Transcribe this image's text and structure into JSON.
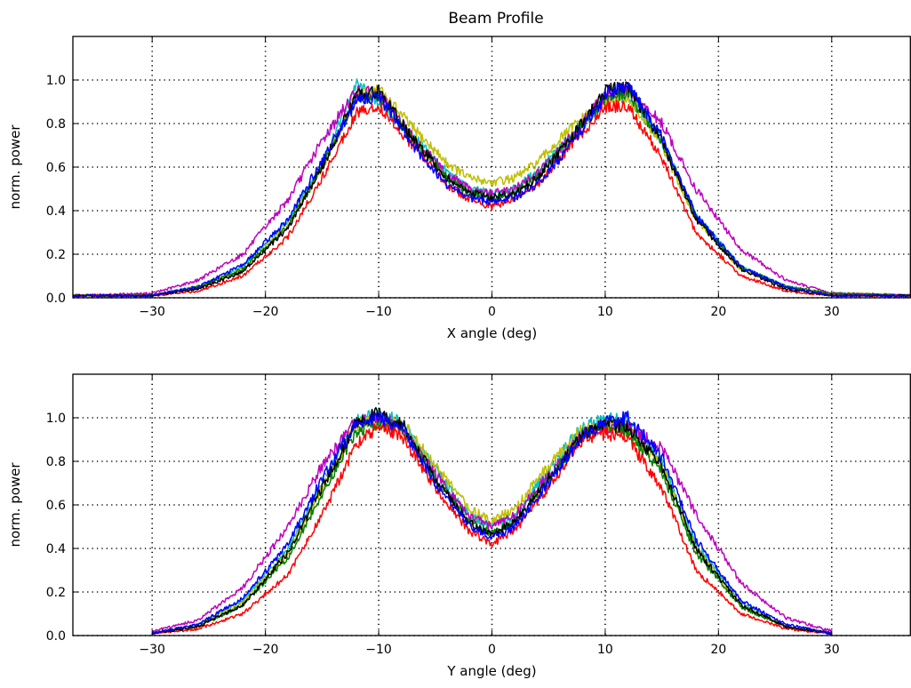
{
  "figure_title": "Beam Profile",
  "chart_data": [
    {
      "type": "line",
      "title": "Beam Profile",
      "xlabel": "X angle (deg)",
      "ylabel": "norm. power",
      "xlim": [
        -37,
        37
      ],
      "ylim": [
        0,
        1.2
      ],
      "xticks": [
        -30,
        -20,
        -10,
        0,
        10,
        20,
        30
      ],
      "yticks": [
        0.0,
        0.2,
        0.4,
        0.6,
        0.8,
        1.0
      ],
      "grid": true,
      "series": [
        {
          "color": "#00bfbf",
          "x": [
            -37,
            -30,
            -26,
            -22,
            -18,
            -15,
            -12,
            -10,
            -7,
            -4,
            -2,
            0,
            2,
            4,
            7,
            10,
            12,
            15,
            18,
            22,
            26,
            30,
            37
          ],
          "y": [
            0.01,
            0.01,
            0.05,
            0.14,
            0.35,
            0.62,
            0.98,
            0.9,
            0.74,
            0.58,
            0.5,
            0.48,
            0.5,
            0.58,
            0.74,
            0.9,
            0.93,
            0.72,
            0.38,
            0.14,
            0.05,
            0.02,
            0.01
          ]
        },
        {
          "color": "#bfbf00",
          "x": [
            -37,
            -30,
            -26,
            -22,
            -18,
            -15,
            -12,
            -10,
            -7,
            -4,
            -2,
            0,
            2,
            4,
            7,
            10,
            12,
            15,
            18,
            22,
            26,
            30,
            37
          ],
          "y": [
            0.01,
            0.01,
            0.05,
            0.13,
            0.34,
            0.6,
            0.92,
            0.96,
            0.78,
            0.62,
            0.55,
            0.53,
            0.55,
            0.62,
            0.78,
            0.9,
            0.92,
            0.7,
            0.36,
            0.13,
            0.05,
            0.02,
            0.01
          ]
        },
        {
          "color": "#bf00bf",
          "x": [
            -37,
            -30,
            -26,
            -22,
            -18,
            -15,
            -12,
            -10,
            -7,
            -4,
            -2,
            0,
            2,
            4,
            7,
            10,
            12,
            15,
            18,
            22,
            26,
            30,
            37
          ],
          "y": [
            0.01,
            0.02,
            0.08,
            0.2,
            0.45,
            0.72,
            0.95,
            0.93,
            0.74,
            0.57,
            0.5,
            0.48,
            0.5,
            0.57,
            0.74,
            0.93,
            0.95,
            0.8,
            0.5,
            0.22,
            0.08,
            0.02,
            0.01
          ]
        },
        {
          "color": "#008000",
          "x": [
            -37,
            -30,
            -26,
            -22,
            -18,
            -15,
            -12,
            -10,
            -7,
            -4,
            -2,
            0,
            2,
            4,
            7,
            10,
            12,
            15,
            18,
            22,
            26,
            30,
            37
          ],
          "y": [
            0.01,
            0.01,
            0.05,
            0.13,
            0.33,
            0.6,
            0.92,
            0.92,
            0.73,
            0.55,
            0.48,
            0.46,
            0.48,
            0.55,
            0.73,
            0.92,
            0.94,
            0.72,
            0.37,
            0.14,
            0.05,
            0.02,
            0.01
          ]
        },
        {
          "color": "#ff0000",
          "x": [
            -37,
            -30,
            -26,
            -22,
            -18,
            -15,
            -12,
            -10,
            -7,
            -4,
            -2,
            0,
            2,
            4,
            7,
            10,
            12,
            15,
            18,
            22,
            26,
            30,
            37
          ],
          "y": [
            0.01,
            0.01,
            0.03,
            0.1,
            0.28,
            0.55,
            0.85,
            0.88,
            0.7,
            0.52,
            0.45,
            0.42,
            0.45,
            0.52,
            0.7,
            0.88,
            0.88,
            0.64,
            0.3,
            0.1,
            0.03,
            0.01,
            0.01
          ]
        },
        {
          "color": "#000000",
          "x": [
            -37,
            -30,
            -26,
            -22,
            -18,
            -15,
            -12,
            -10,
            -7,
            -4,
            -2,
            0,
            2,
            4,
            7,
            10,
            12,
            15,
            18,
            22,
            26,
            30,
            37
          ],
          "y": [
            0.01,
            0.01,
            0.04,
            0.12,
            0.32,
            0.6,
            0.93,
            0.95,
            0.73,
            0.55,
            0.48,
            0.46,
            0.48,
            0.55,
            0.73,
            0.95,
            0.97,
            0.72,
            0.36,
            0.13,
            0.04,
            0.01,
            0.01
          ]
        },
        {
          "color": "#0000ff",
          "x": [
            -37,
            -30,
            -26,
            -22,
            -18,
            -15,
            -12,
            -10,
            -7,
            -4,
            -2,
            0,
            2,
            4,
            7,
            10,
            12,
            15,
            18,
            22,
            26,
            30,
            37
          ],
          "y": [
            0.01,
            0.01,
            0.05,
            0.15,
            0.36,
            0.63,
            0.9,
            0.93,
            0.7,
            0.52,
            0.46,
            0.44,
            0.46,
            0.52,
            0.7,
            0.93,
            0.98,
            0.74,
            0.38,
            0.14,
            0.05,
            0.01,
            0.01
          ]
        }
      ]
    },
    {
      "type": "line",
      "title": "",
      "xlabel": "Y angle (deg)",
      "ylabel": "norm. power",
      "xlim": [
        -37,
        37
      ],
      "ylim": [
        0,
        1.2
      ],
      "xticks": [
        -30,
        -20,
        -10,
        0,
        10,
        20,
        30
      ],
      "yticks": [
        0.0,
        0.2,
        0.4,
        0.6,
        0.8,
        1.0
      ],
      "grid": true,
      "series": [
        {
          "color": "#00bfbf",
          "x": [
            -30,
            -26,
            -22,
            -18,
            -15,
            -12,
            -10,
            -8,
            -5,
            -2,
            0,
            2,
            5,
            8,
            10,
            12,
            15,
            18,
            22,
            26,
            30
          ],
          "y": [
            0.01,
            0.05,
            0.16,
            0.4,
            0.7,
            0.98,
            1.02,
            0.98,
            0.76,
            0.55,
            0.5,
            0.55,
            0.76,
            0.96,
            1.0,
            0.98,
            0.8,
            0.42,
            0.15,
            0.04,
            0.01
          ]
        },
        {
          "color": "#bfbf00",
          "x": [
            -30,
            -26,
            -22,
            -18,
            -15,
            -12,
            -10,
            -8,
            -5,
            -2,
            0,
            2,
            5,
            8,
            10,
            12,
            15,
            18,
            22,
            26,
            30
          ],
          "y": [
            0.01,
            0.05,
            0.15,
            0.38,
            0.68,
            0.96,
            1.0,
            0.98,
            0.78,
            0.58,
            0.53,
            0.58,
            0.78,
            0.95,
            0.97,
            0.94,
            0.78,
            0.4,
            0.14,
            0.04,
            0.01
          ]
        },
        {
          "color": "#bf00bf",
          "x": [
            -30,
            -26,
            -22,
            -18,
            -15,
            -12,
            -10,
            -8,
            -5,
            -2,
            0,
            2,
            5,
            8,
            10,
            12,
            15,
            18,
            22,
            26,
            30
          ],
          "y": [
            0.02,
            0.07,
            0.22,
            0.5,
            0.78,
            0.98,
            1.0,
            0.95,
            0.74,
            0.55,
            0.5,
            0.55,
            0.74,
            0.92,
            0.96,
            0.96,
            0.86,
            0.56,
            0.24,
            0.08,
            0.02
          ]
        },
        {
          "color": "#008000",
          "x": [
            -30,
            -26,
            -22,
            -18,
            -15,
            -12,
            -10,
            -8,
            -5,
            -2,
            0,
            2,
            5,
            8,
            10,
            12,
            15,
            18,
            22,
            26,
            30
          ],
          "y": [
            0.01,
            0.04,
            0.14,
            0.36,
            0.65,
            0.94,
            0.98,
            0.95,
            0.72,
            0.52,
            0.47,
            0.52,
            0.72,
            0.92,
            0.96,
            0.94,
            0.75,
            0.38,
            0.13,
            0.04,
            0.01
          ]
        },
        {
          "color": "#ff0000",
          "x": [
            -30,
            -26,
            -22,
            -18,
            -15,
            -12,
            -10,
            -8,
            -5,
            -2,
            0,
            2,
            5,
            8,
            10,
            12,
            15,
            18,
            22,
            26,
            30
          ],
          "y": [
            0.01,
            0.03,
            0.1,
            0.28,
            0.55,
            0.88,
            0.96,
            0.92,
            0.68,
            0.48,
            0.42,
            0.48,
            0.68,
            0.9,
            0.93,
            0.9,
            0.68,
            0.3,
            0.1,
            0.03,
            0.01
          ]
        },
        {
          "color": "#000000",
          "x": [
            -30,
            -26,
            -22,
            -18,
            -15,
            -12,
            -10,
            -8,
            -5,
            -2,
            0,
            2,
            5,
            8,
            10,
            12,
            15,
            18,
            22,
            26,
            30
          ],
          "y": [
            0.01,
            0.04,
            0.14,
            0.38,
            0.68,
            0.97,
            1.02,
            0.98,
            0.72,
            0.52,
            0.46,
            0.52,
            0.72,
            0.92,
            0.97,
            0.96,
            0.78,
            0.4,
            0.14,
            0.04,
            0.01
          ]
        },
        {
          "color": "#0000ff",
          "x": [
            -30,
            -26,
            -22,
            -18,
            -15,
            -12,
            -10,
            -8,
            -5,
            -2,
            0,
            2,
            5,
            8,
            10,
            12,
            15,
            18,
            22,
            26,
            30
          ],
          "y": [
            0.01,
            0.05,
            0.17,
            0.42,
            0.72,
            0.98,
            1.0,
            0.96,
            0.7,
            0.5,
            0.45,
            0.5,
            0.7,
            0.92,
            0.98,
            1.0,
            0.82,
            0.44,
            0.16,
            0.05,
            0.01
          ]
        }
      ]
    }
  ]
}
